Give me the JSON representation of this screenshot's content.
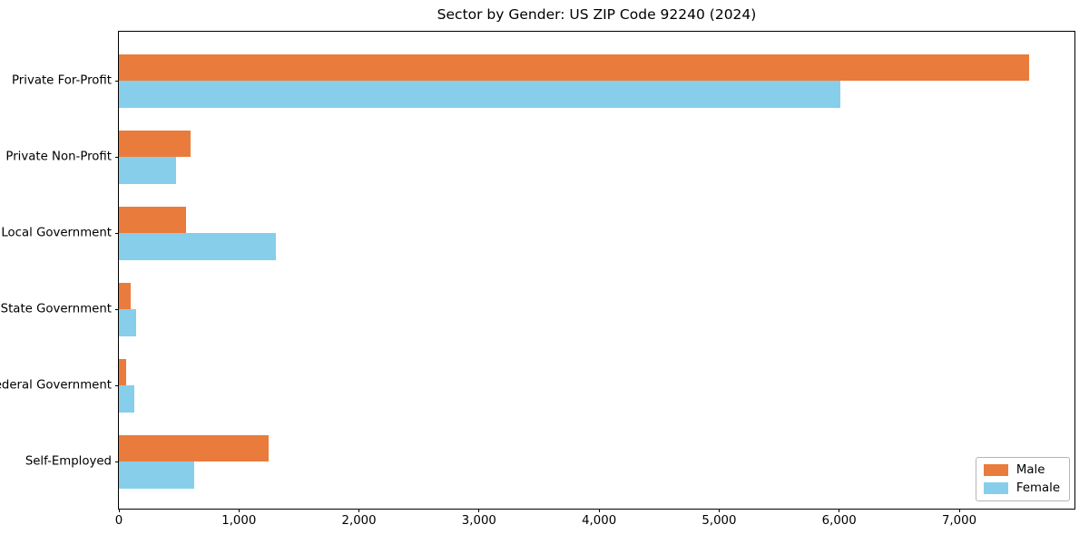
{
  "title": "Sector by Gender: US ZIP Code 92240 (2024)",
  "chart_data": {
    "type": "bar",
    "orientation": "horizontal",
    "title": "Sector by Gender: US ZIP Code 92240 (2024)",
    "categories": [
      "Private For-Profit",
      "Private Non-Profit",
      "Local Government",
      "State Government",
      "Federal Government",
      "Self-Employed"
    ],
    "series": [
      {
        "name": "Male",
        "color": "#e97c3c",
        "values": [
          7580,
          600,
          560,
          100,
          60,
          1250
        ]
      },
      {
        "name": "Female",
        "color": "#87ceeb",
        "values": [
          6010,
          480,
          1310,
          140,
          130,
          630
        ]
      }
    ],
    "xlabel": "",
    "ylabel": "",
    "xlim": [
      0,
      7960
    ],
    "x_tick_labels": [
      "0",
      "1,000",
      "2,000",
      "3,000",
      "4,000",
      "5,000",
      "6,000",
      "7,000"
    ],
    "x_tick_values": [
      0,
      1000,
      2000,
      3000,
      4000,
      5000,
      6000,
      7000
    ],
    "grid": false,
    "legend": {
      "position": "lower right",
      "entries": [
        "Male",
        "Female"
      ]
    }
  }
}
